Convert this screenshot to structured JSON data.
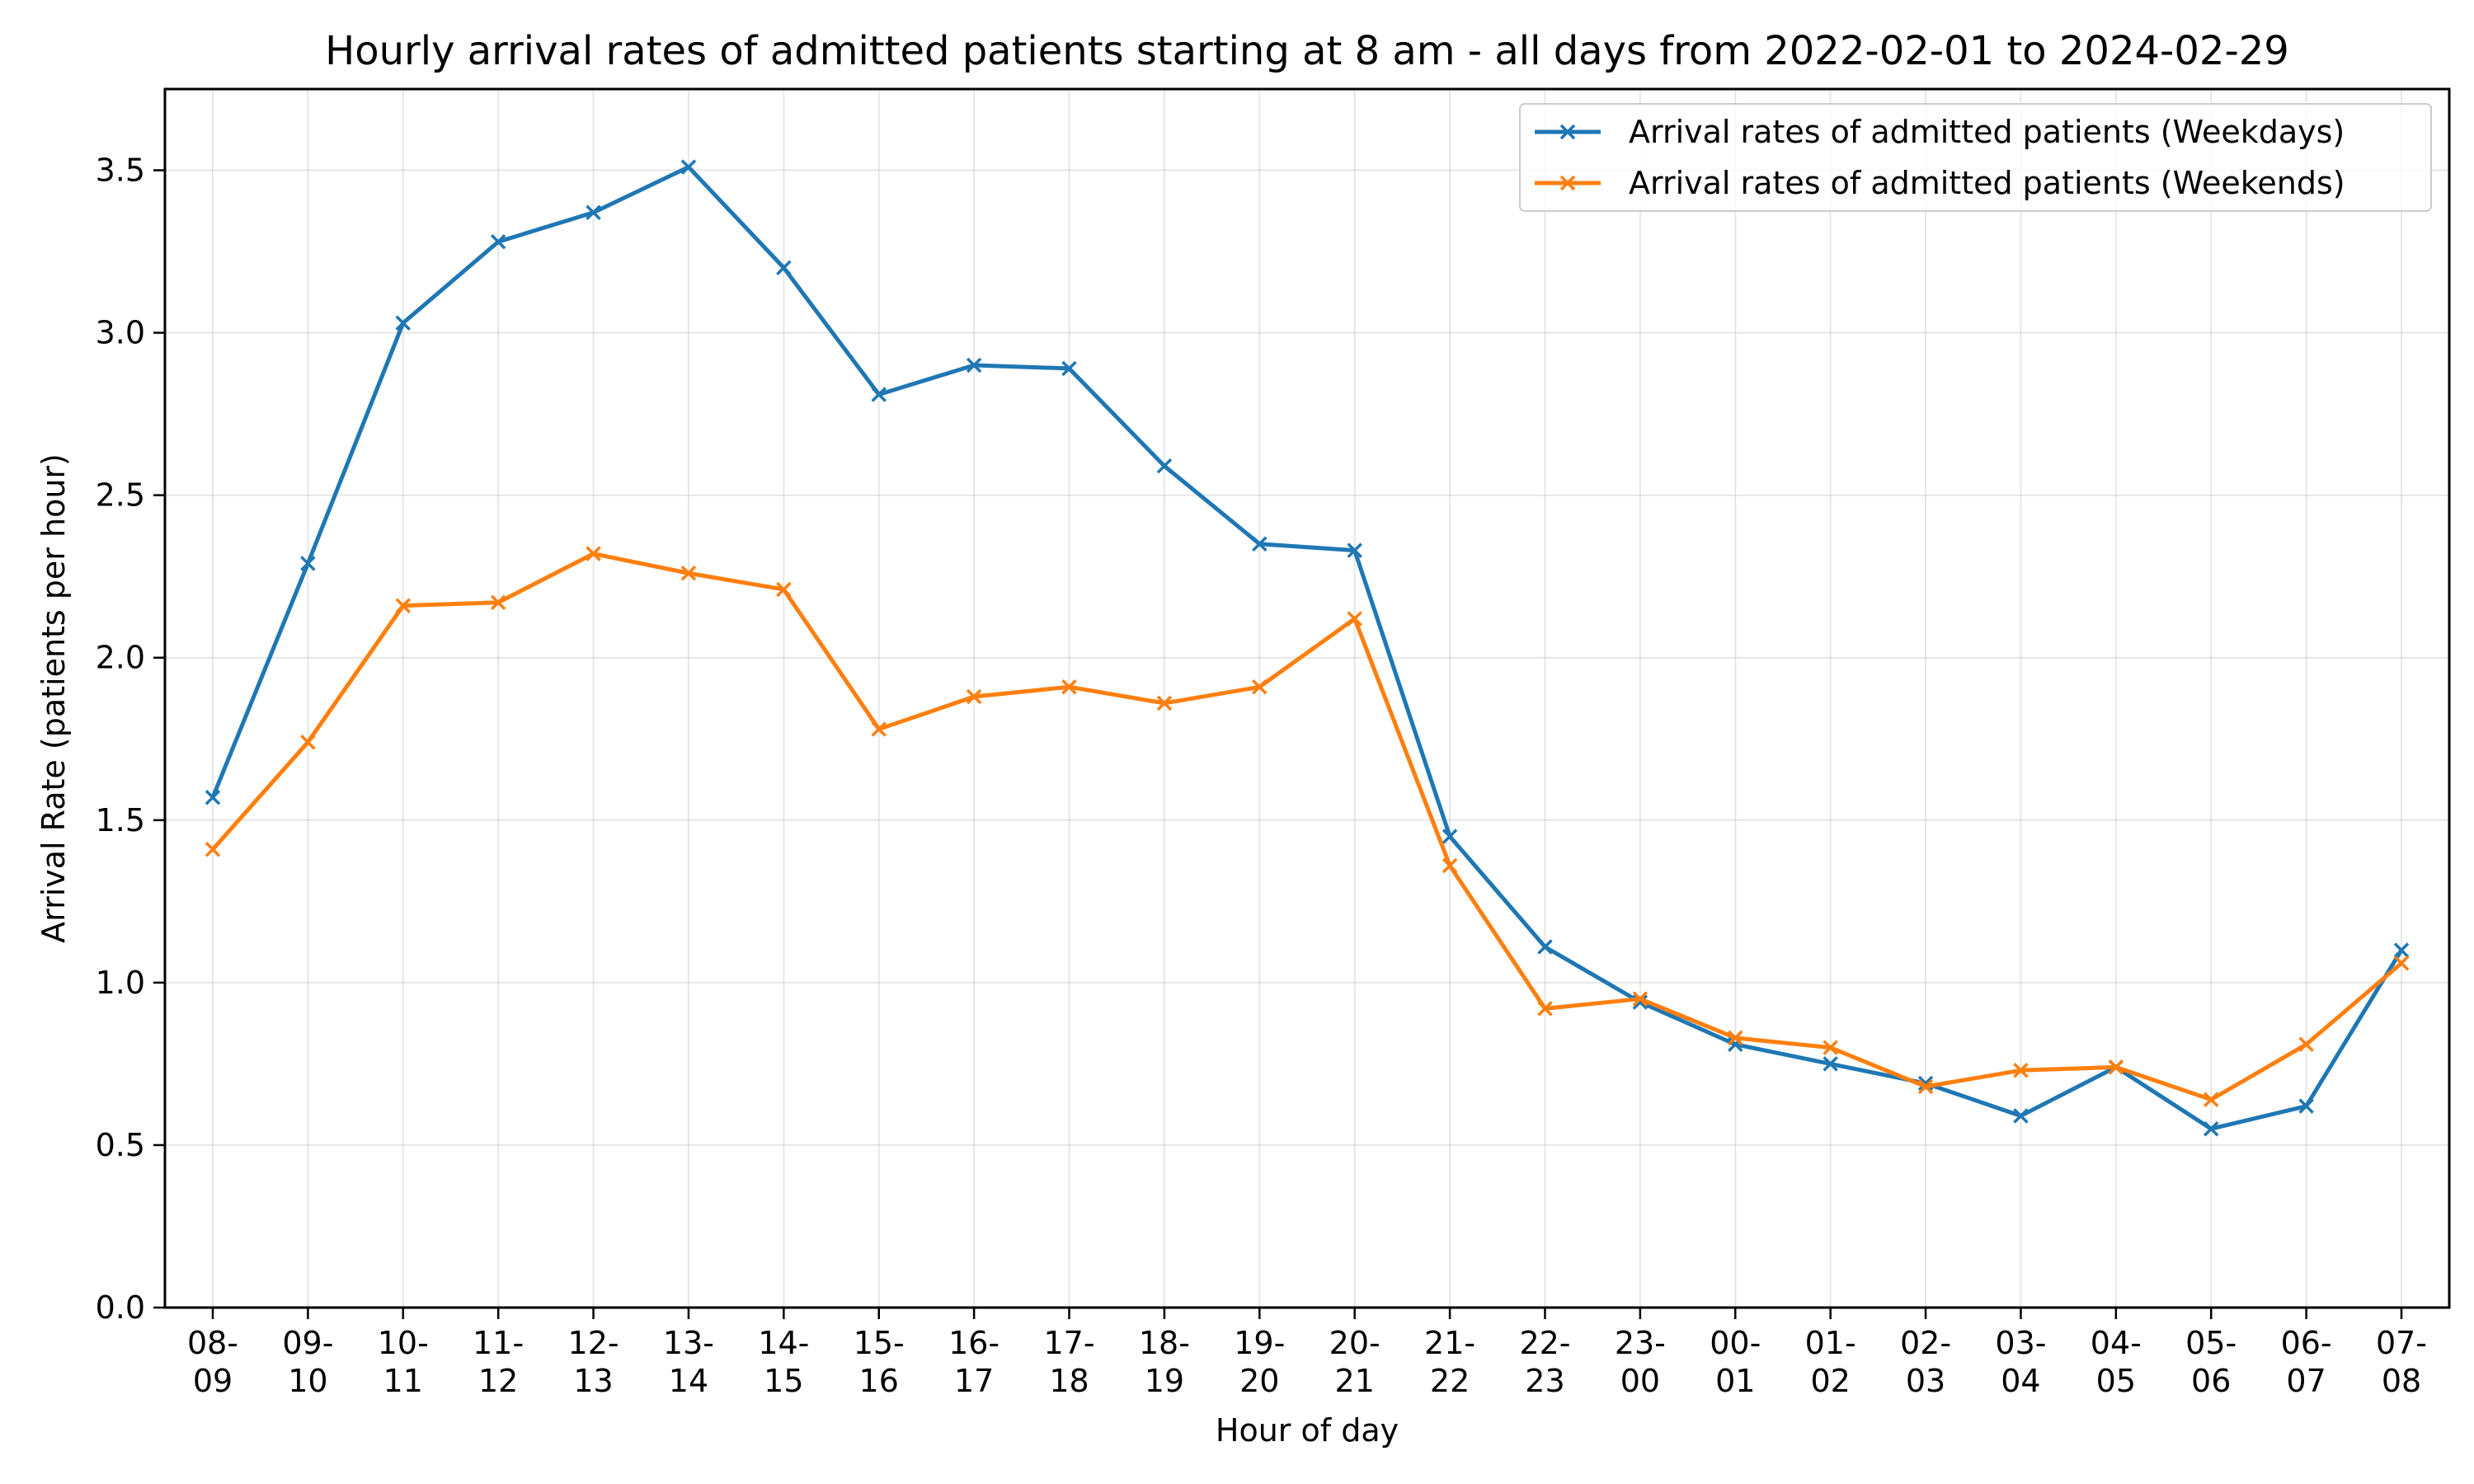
{
  "chart_data": {
    "type": "line",
    "title": "Hourly arrival rates of admitted patients starting at 8 am - all days from 2022-02-01 to 2024-02-29",
    "xlabel": "Hour of day",
    "ylabel": "Arrival Rate (patients per hour)",
    "ylim": [
      0,
      3.75
    ],
    "yticks": [
      "0.0",
      "0.5",
      "1.0",
      "1.5",
      "2.0",
      "2.5",
      "3.0",
      "3.5"
    ],
    "grid": true,
    "legend_position": "top-right",
    "categories": [
      [
        "08-",
        "09"
      ],
      [
        "09-",
        "10"
      ],
      [
        "10-",
        "11"
      ],
      [
        "11-",
        "12"
      ],
      [
        "12-",
        "13"
      ],
      [
        "13-",
        "14"
      ],
      [
        "14-",
        "15"
      ],
      [
        "15-",
        "16"
      ],
      [
        "16-",
        "17"
      ],
      [
        "17-",
        "18"
      ],
      [
        "18-",
        "19"
      ],
      [
        "19-",
        "20"
      ],
      [
        "20-",
        "21"
      ],
      [
        "21-",
        "22"
      ],
      [
        "22-",
        "23"
      ],
      [
        "23-",
        "00"
      ],
      [
        "00-",
        "01"
      ],
      [
        "01-",
        "02"
      ],
      [
        "02-",
        "03"
      ],
      [
        "03-",
        "04"
      ],
      [
        "04-",
        "05"
      ],
      [
        "05-",
        "06"
      ],
      [
        "06-",
        "07"
      ],
      [
        "07-",
        "08"
      ]
    ],
    "series": [
      {
        "name": "Arrival rates of admitted patients (Weekdays)",
        "color": "#1f77b4",
        "marker": "x",
        "values": [
          1.57,
          2.29,
          3.03,
          3.28,
          3.37,
          3.51,
          3.2,
          2.81,
          2.9,
          2.89,
          2.59,
          2.35,
          2.33,
          1.45,
          1.11,
          0.94,
          0.81,
          0.75,
          0.69,
          0.59,
          0.74,
          0.55,
          0.62,
          1.1
        ]
      },
      {
        "name": "Arrival rates of admitted patients (Weekends)",
        "color": "#ff7f0e",
        "marker": "x",
        "values": [
          1.41,
          1.74,
          2.16,
          2.17,
          2.32,
          2.26,
          2.21,
          1.78,
          1.88,
          1.91,
          1.86,
          1.91,
          2.12,
          1.36,
          0.92,
          0.95,
          0.83,
          0.8,
          0.68,
          0.73,
          0.74,
          0.64,
          0.81,
          1.06
        ]
      }
    ]
  }
}
